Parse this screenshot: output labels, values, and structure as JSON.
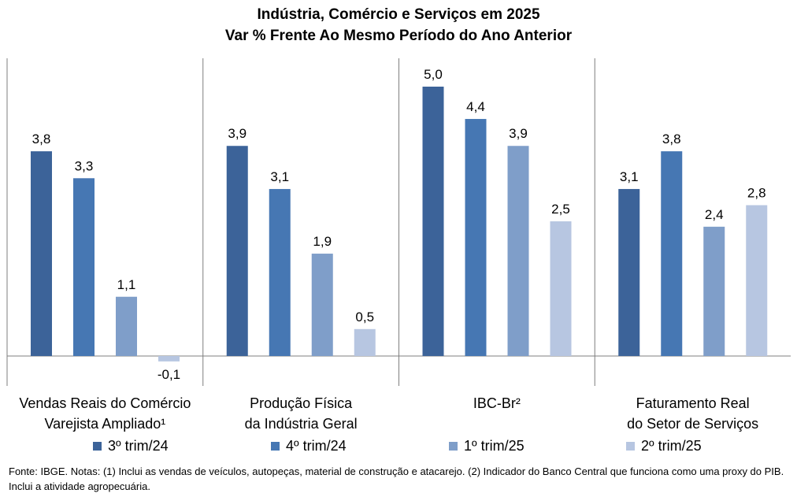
{
  "chart_data": {
    "type": "bar",
    "title": "Indústria, Comércio e Serviços em 2025",
    "subtitle": "Var % Frente Ao Mesmo Período do Ano Anterior",
    "categories": [
      [
        "Vendas Reais do Comércio",
        "Varejista Ampliado¹"
      ],
      [
        "Produção Física",
        "da Indústria Geral"
      ],
      [
        "IBC-Br²"
      ],
      [
        "Faturamento Real",
        "do Setor de Serviços"
      ]
    ],
    "series": [
      {
        "name": "3º trim/24",
        "color": "#3c6399",
        "values": [
          3.8,
          3.9,
          5.0,
          3.1
        ],
        "labels": [
          "3,8",
          "3,9",
          "5,0",
          "3,1"
        ]
      },
      {
        "name": "4º trim/24",
        "color": "#4677b3",
        "values": [
          3.3,
          3.1,
          4.4,
          3.8
        ],
        "labels": [
          "3,3",
          "3,1",
          "4,4",
          "3,8"
        ]
      },
      {
        "name": "1º trim/25",
        "color": "#7f9ec9",
        "values": [
          1.1,
          1.9,
          3.9,
          2.4
        ],
        "labels": [
          "1,1",
          "1,9",
          "3,9",
          "2,4"
        ]
      },
      {
        "name": "2º trim/25",
        "color": "#b7c6e1",
        "values": [
          -0.1,
          0.5,
          2.5,
          2.8
        ],
        "labels": [
          "-0,1",
          "0,5",
          "2,5",
          "2,8"
        ]
      }
    ],
    "ylim": [
      -0.5,
      6.0
    ],
    "grid": false,
    "legend_position": "bottom"
  },
  "footnote": "Fonte: IBGE. Notas: (1) Inclui as vendas de veículos, autopeças, material de construção e atacarejo. (2) Indicador do Banco Central que funciona como uma proxy do PIB. Inclui a atividade agropecuária."
}
